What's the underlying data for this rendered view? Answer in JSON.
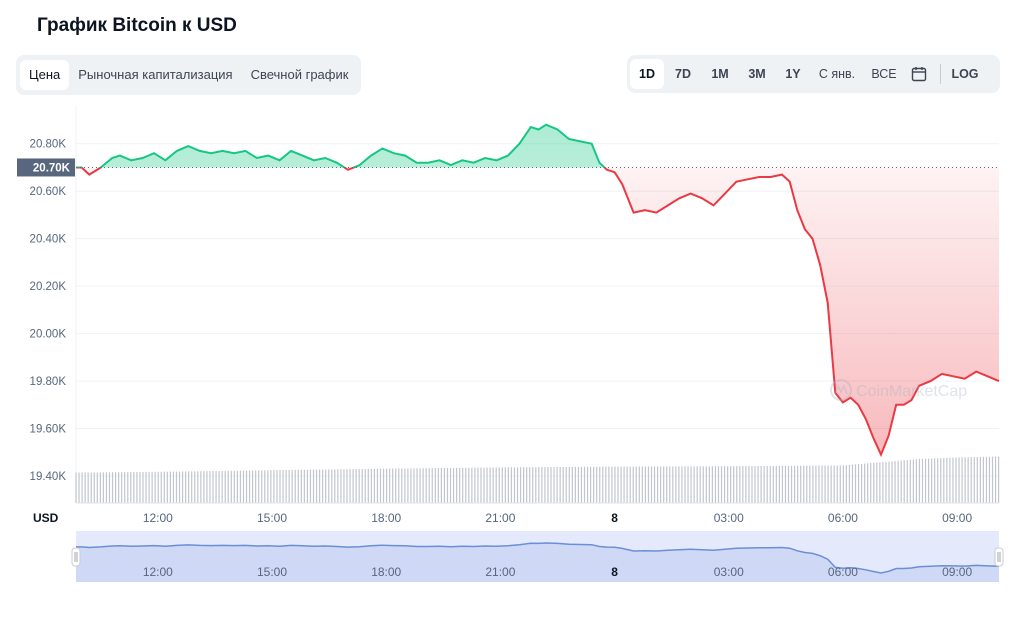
{
  "header": {
    "title": "График Bitcoin к USD"
  },
  "tabs": [
    {
      "label": "Цена",
      "active": true
    },
    {
      "label": "Рыночная капитализация",
      "active": false
    },
    {
      "label": "Свечной график",
      "active": false
    }
  ],
  "ranges": {
    "buttons": [
      {
        "label": "1D",
        "active": true
      },
      {
        "label": "7D",
        "active": false
      },
      {
        "label": "1M",
        "active": false
      },
      {
        "label": "3M",
        "active": false
      },
      {
        "label": "1Y",
        "active": false
      },
      {
        "label": "С янв.",
        "active": false
      },
      {
        "label": "ВСЕ",
        "active": false
      }
    ],
    "calendar_icon": "calendar-icon",
    "log_label": "LOG"
  },
  "watermark": "CoinMarketCap",
  "colors": {
    "up": "#16c784",
    "down": "#ea3943",
    "volume": "#c2c6cc",
    "navigator": "#e4e9fb",
    "navigator_line": "#6b8fd6"
  },
  "chart_data": {
    "type": "line",
    "title": "График Bitcoin к USD",
    "ylabel": "USD",
    "ylim": [
      19400,
      20900
    ],
    "yticks": [
      19400,
      19600,
      19800,
      20000,
      20200,
      20400,
      20600,
      20800
    ],
    "ytick_labels": [
      "19.40K",
      "19.60K",
      "19.80K",
      "20.00K",
      "20.20K",
      "20.40K",
      "20.60K",
      "20.80K"
    ],
    "xticks": [
      12,
      15,
      18,
      21,
      24,
      27,
      30,
      33
    ],
    "xtick_labels": [
      "12:00",
      "15:00",
      "18:00",
      "21:00",
      "8",
      "03:00",
      "06:00",
      "09:00"
    ],
    "x_unit": "hours from 00:00 of the previous day",
    "xlim": [
      9.85,
      34.1
    ],
    "reference_value": 20700,
    "reference_label": "20.70K",
    "series": [
      {
        "x": [
          9.85,
          10.0,
          10.2,
          10.5,
          10.8,
          11.0,
          11.3,
          11.6,
          11.9,
          12.2,
          12.5,
          12.8,
          13.1,
          13.4,
          13.7,
          14.0,
          14.3,
          14.6,
          14.9,
          15.2,
          15.5,
          15.8,
          16.1,
          16.4,
          16.7,
          17.0,
          17.3,
          17.6,
          17.9,
          18.2,
          18.5,
          18.8,
          19.1,
          19.4,
          19.7,
          20.0,
          20.3,
          20.6,
          20.9,
          21.2,
          21.5,
          21.8,
          22.0,
          22.2,
          22.5,
          22.8,
          23.1,
          23.4,
          23.6,
          23.8,
          24.0,
          24.2,
          24.5,
          24.8,
          25.1,
          25.4,
          25.7,
          26.0,
          26.3,
          26.6,
          26.9,
          27.2,
          27.5,
          27.8,
          28.1,
          28.4,
          28.6,
          28.8,
          29.0,
          29.2,
          29.4,
          29.6,
          29.8,
          30.0,
          30.2,
          30.4,
          30.6,
          30.8,
          31.0,
          31.2,
          31.4,
          31.6,
          31.8,
          32.0,
          32.3,
          32.6,
          32.9,
          33.2,
          33.5,
          33.8,
          34.1
        ],
        "values": [
          20700,
          20700,
          20670,
          20700,
          20740,
          20750,
          20730,
          20740,
          20760,
          20730,
          20770,
          20790,
          20770,
          20760,
          20770,
          20760,
          20770,
          20740,
          20750,
          20730,
          20770,
          20750,
          20730,
          20740,
          20720,
          20690,
          20710,
          20750,
          20780,
          20760,
          20750,
          20720,
          20720,
          20730,
          20710,
          20730,
          20720,
          20740,
          20730,
          20750,
          20800,
          20870,
          20860,
          20880,
          20860,
          20820,
          20810,
          20800,
          20720,
          20690,
          20680,
          20630,
          20510,
          20520,
          20510,
          20540,
          20570,
          20590,
          20570,
          20540,
          20590,
          20640,
          20650,
          20660,
          20660,
          20670,
          20640,
          20520,
          20440,
          20400,
          20290,
          20130,
          19750,
          19710,
          19730,
          19700,
          19640,
          19560,
          19490,
          19570,
          19700,
          19700,
          19720,
          19780,
          19800,
          19830,
          19820,
          19810,
          19840,
          19820,
          19800
        ]
      }
    ],
    "volume": {
      "x": [
        10,
        12,
        15,
        18,
        21,
        24,
        27,
        30,
        31,
        32,
        33,
        34
      ],
      "values": [
        0.38,
        0.39,
        0.41,
        0.43,
        0.445,
        0.455,
        0.46,
        0.47,
        0.51,
        0.55,
        0.57,
        0.58
      ]
    }
  }
}
